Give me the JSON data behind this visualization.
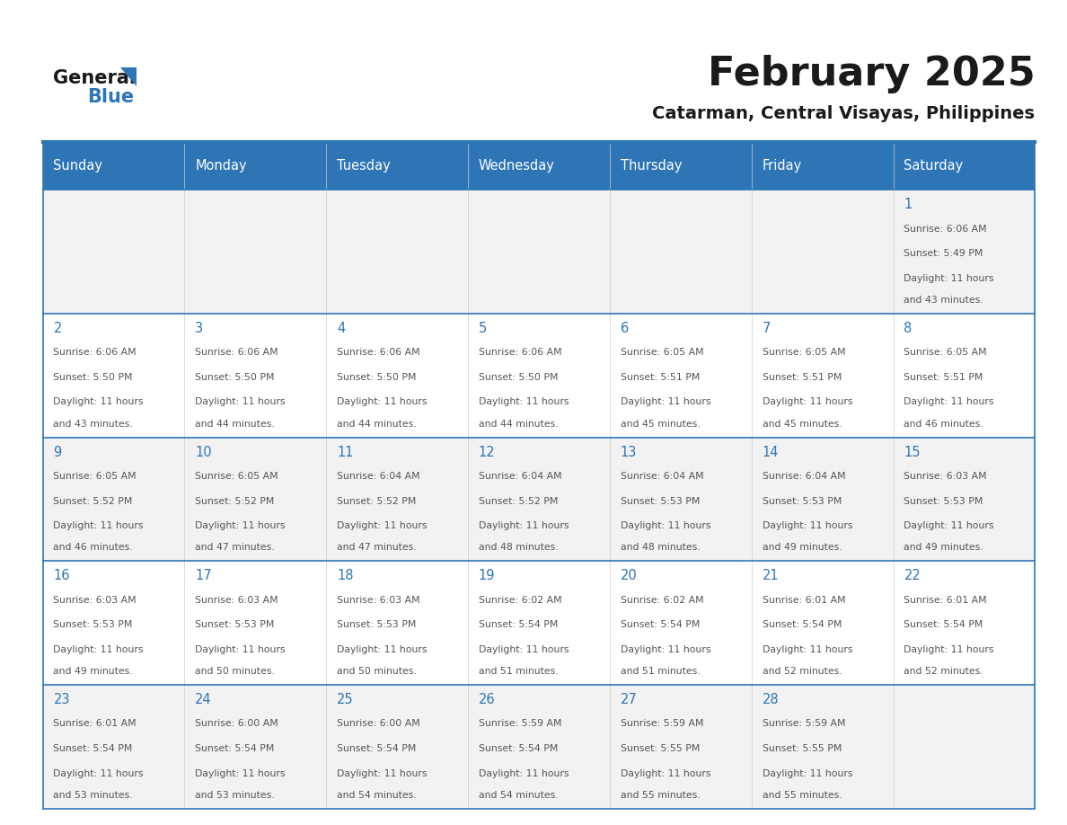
{
  "title": "February 2025",
  "subtitle": "Catarman, Central Visayas, Philippines",
  "header_bg": "#2E75B6",
  "header_text": "#FFFFFF",
  "row_bg_odd": "#FFFFFF",
  "row_bg_even": "#F2F2F2",
  "day_headers": [
    "Sunday",
    "Monday",
    "Tuesday",
    "Wednesday",
    "Thursday",
    "Friday",
    "Saturday"
  ],
  "separator_color": "#2E75B6",
  "day_number_color": "#2E75B6",
  "cell_text_color": "#555555",
  "logo_general_color": "#1a1a1a",
  "logo_blue_color": "#2E75B6",
  "calendar": [
    [
      null,
      null,
      null,
      null,
      null,
      null,
      {
        "day": 1,
        "sunrise": "6:06 AM",
        "sunset": "5:49 PM",
        "daylight": "11 hours and 43 minutes."
      }
    ],
    [
      {
        "day": 2,
        "sunrise": "6:06 AM",
        "sunset": "5:50 PM",
        "daylight": "11 hours and 43 minutes."
      },
      {
        "day": 3,
        "sunrise": "6:06 AM",
        "sunset": "5:50 PM",
        "daylight": "11 hours and 44 minutes."
      },
      {
        "day": 4,
        "sunrise": "6:06 AM",
        "sunset": "5:50 PM",
        "daylight": "11 hours and 44 minutes."
      },
      {
        "day": 5,
        "sunrise": "6:06 AM",
        "sunset": "5:50 PM",
        "daylight": "11 hours and 44 minutes."
      },
      {
        "day": 6,
        "sunrise": "6:05 AM",
        "sunset": "5:51 PM",
        "daylight": "11 hours and 45 minutes."
      },
      {
        "day": 7,
        "sunrise": "6:05 AM",
        "sunset": "5:51 PM",
        "daylight": "11 hours and 45 minutes."
      },
      {
        "day": 8,
        "sunrise": "6:05 AM",
        "sunset": "5:51 PM",
        "daylight": "11 hours and 46 minutes."
      }
    ],
    [
      {
        "day": 9,
        "sunrise": "6:05 AM",
        "sunset": "5:52 PM",
        "daylight": "11 hours and 46 minutes."
      },
      {
        "day": 10,
        "sunrise": "6:05 AM",
        "sunset": "5:52 PM",
        "daylight": "11 hours and 47 minutes."
      },
      {
        "day": 11,
        "sunrise": "6:04 AM",
        "sunset": "5:52 PM",
        "daylight": "11 hours and 47 minutes."
      },
      {
        "day": 12,
        "sunrise": "6:04 AM",
        "sunset": "5:52 PM",
        "daylight": "11 hours and 48 minutes."
      },
      {
        "day": 13,
        "sunrise": "6:04 AM",
        "sunset": "5:53 PM",
        "daylight": "11 hours and 48 minutes."
      },
      {
        "day": 14,
        "sunrise": "6:04 AM",
        "sunset": "5:53 PM",
        "daylight": "11 hours and 49 minutes."
      },
      {
        "day": 15,
        "sunrise": "6:03 AM",
        "sunset": "5:53 PM",
        "daylight": "11 hours and 49 minutes."
      }
    ],
    [
      {
        "day": 16,
        "sunrise": "6:03 AM",
        "sunset": "5:53 PM",
        "daylight": "11 hours and 49 minutes."
      },
      {
        "day": 17,
        "sunrise": "6:03 AM",
        "sunset": "5:53 PM",
        "daylight": "11 hours and 50 minutes."
      },
      {
        "day": 18,
        "sunrise": "6:03 AM",
        "sunset": "5:53 PM",
        "daylight": "11 hours and 50 minutes."
      },
      {
        "day": 19,
        "sunrise": "6:02 AM",
        "sunset": "5:54 PM",
        "daylight": "11 hours and 51 minutes."
      },
      {
        "day": 20,
        "sunrise": "6:02 AM",
        "sunset": "5:54 PM",
        "daylight": "11 hours and 51 minutes."
      },
      {
        "day": 21,
        "sunrise": "6:01 AM",
        "sunset": "5:54 PM",
        "daylight": "11 hours and 52 minutes."
      },
      {
        "day": 22,
        "sunrise": "6:01 AM",
        "sunset": "5:54 PM",
        "daylight": "11 hours and 52 minutes."
      }
    ],
    [
      {
        "day": 23,
        "sunrise": "6:01 AM",
        "sunset": "5:54 PM",
        "daylight": "11 hours and 53 minutes."
      },
      {
        "day": 24,
        "sunrise": "6:00 AM",
        "sunset": "5:54 PM",
        "daylight": "11 hours and 53 minutes."
      },
      {
        "day": 25,
        "sunrise": "6:00 AM",
        "sunset": "5:54 PM",
        "daylight": "11 hours and 54 minutes."
      },
      {
        "day": 26,
        "sunrise": "5:59 AM",
        "sunset": "5:54 PM",
        "daylight": "11 hours and 54 minutes."
      },
      {
        "day": 27,
        "sunrise": "5:59 AM",
        "sunset": "5:55 PM",
        "daylight": "11 hours and 55 minutes."
      },
      {
        "day": 28,
        "sunrise": "5:59 AM",
        "sunset": "5:55 PM",
        "daylight": "11 hours and 55 minutes."
      },
      null
    ]
  ]
}
